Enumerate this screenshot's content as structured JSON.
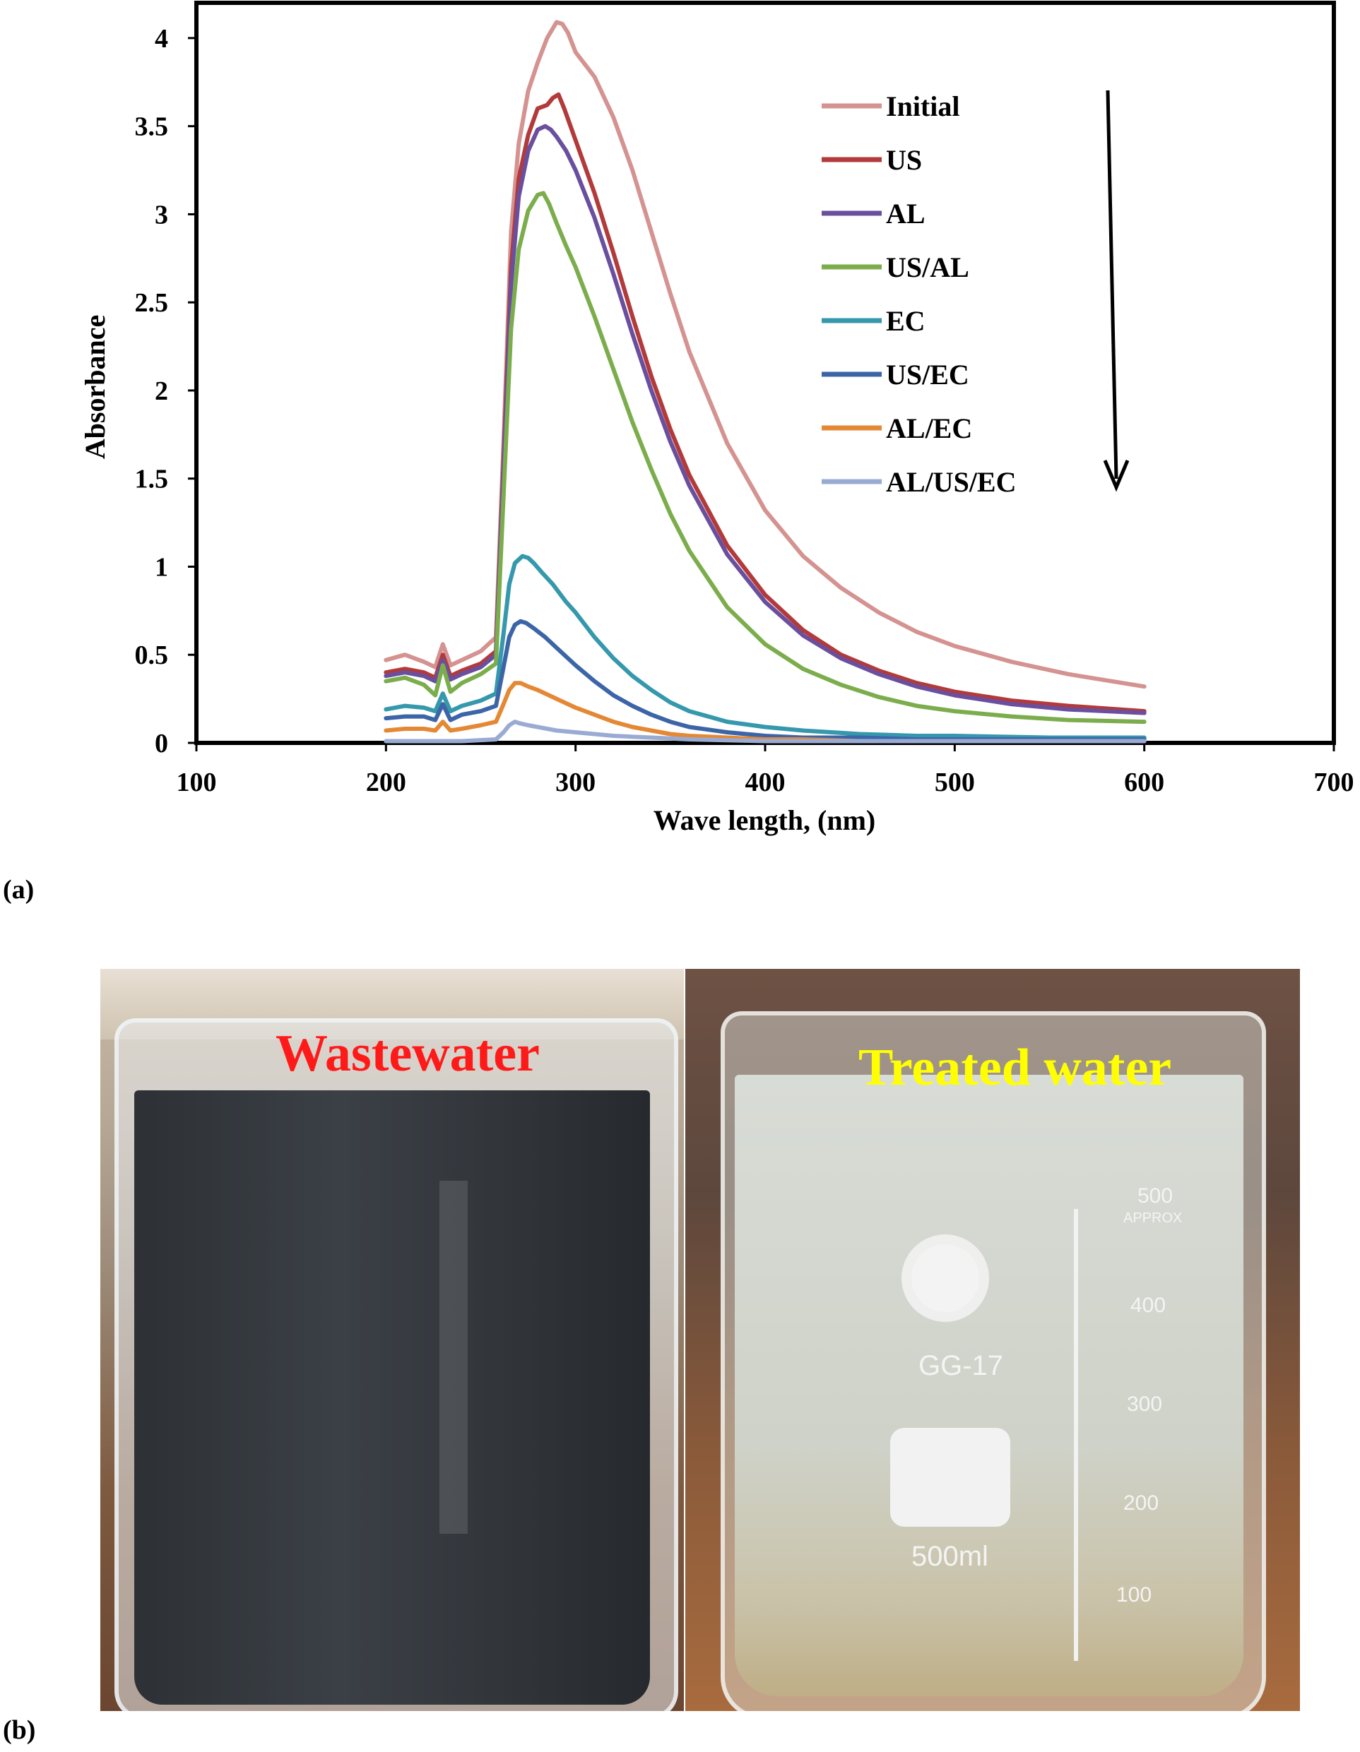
{
  "panel_labels": {
    "a": "(a)",
    "b": "(b)"
  },
  "chart_data": {
    "type": "line",
    "xlabel": "Wave length, (nm)",
    "ylabel": "Absorbance",
    "xlim": [
      100,
      700
    ],
    "ylim": [
      0,
      4.2
    ],
    "xticks": [
      100,
      200,
      300,
      400,
      500,
      600,
      700
    ],
    "yticks": [
      0,
      0.5,
      1,
      1.5,
      2,
      2.5,
      3,
      3.5,
      4
    ],
    "ytick_labels": [
      "0",
      "0.5",
      "1",
      "1.5",
      "2",
      "2.5",
      "3",
      "3.5",
      "4"
    ],
    "grid": false,
    "legend_position": "top-right",
    "annotation": "downward arrow indicating decreasing absorbance",
    "series": [
      {
        "name": "Initial",
        "color": "#d49390",
        "x": [
          200,
          210,
          220,
          226,
          230,
          234,
          240,
          250,
          258,
          262,
          266,
          270,
          275,
          280,
          285,
          290,
          293,
          296,
          300,
          305,
          310,
          320,
          330,
          340,
          350,
          360,
          380,
          400,
          420,
          440,
          460,
          480,
          500,
          530,
          560,
          600
        ],
        "y": [
          0.47,
          0.5,
          0.46,
          0.43,
          0.56,
          0.44,
          0.47,
          0.52,
          0.6,
          1.7,
          2.9,
          3.4,
          3.7,
          3.86,
          4.0,
          4.09,
          4.08,
          4.03,
          3.92,
          3.85,
          3.78,
          3.55,
          3.25,
          2.9,
          2.55,
          2.22,
          1.7,
          1.32,
          1.06,
          0.88,
          0.74,
          0.63,
          0.55,
          0.46,
          0.39,
          0.32
        ]
      },
      {
        "name": "US",
        "color": "#b33a3a",
        "x": [
          200,
          210,
          220,
          226,
          230,
          234,
          240,
          250,
          258,
          262,
          266,
          270,
          275,
          280,
          285,
          288,
          291,
          294,
          300,
          310,
          320,
          330,
          340,
          350,
          360,
          380,
          400,
          420,
          440,
          460,
          480,
          500,
          530,
          560,
          600
        ],
        "y": [
          0.4,
          0.42,
          0.4,
          0.37,
          0.5,
          0.38,
          0.41,
          0.45,
          0.52,
          1.6,
          2.7,
          3.2,
          3.45,
          3.6,
          3.62,
          3.66,
          3.68,
          3.6,
          3.42,
          3.12,
          2.78,
          2.42,
          2.08,
          1.78,
          1.52,
          1.12,
          0.84,
          0.64,
          0.5,
          0.41,
          0.34,
          0.29,
          0.24,
          0.21,
          0.18
        ]
      },
      {
        "name": "AL",
        "color": "#6a4f9e",
        "x": [
          200,
          210,
          220,
          226,
          230,
          234,
          240,
          250,
          258,
          262,
          266,
          270,
          275,
          280,
          284,
          287,
          290,
          295,
          300,
          310,
          320,
          330,
          340,
          350,
          360,
          380,
          400,
          420,
          440,
          460,
          480,
          500,
          530,
          560,
          600
        ],
        "y": [
          0.38,
          0.4,
          0.38,
          0.35,
          0.47,
          0.36,
          0.39,
          0.43,
          0.5,
          1.55,
          2.6,
          3.1,
          3.36,
          3.48,
          3.5,
          3.48,
          3.44,
          3.36,
          3.25,
          2.98,
          2.66,
          2.32,
          2.0,
          1.71,
          1.46,
          1.07,
          0.8,
          0.61,
          0.48,
          0.39,
          0.32,
          0.27,
          0.22,
          0.19,
          0.17
        ]
      },
      {
        "name": "US/AL",
        "color": "#7cad4c",
        "x": [
          200,
          210,
          220,
          226,
          230,
          234,
          240,
          250,
          258,
          262,
          266,
          270,
          275,
          280,
          283,
          286,
          290,
          295,
          300,
          310,
          320,
          330,
          340,
          350,
          360,
          380,
          400,
          420,
          440,
          460,
          480,
          500,
          530,
          560,
          600
        ],
        "y": [
          0.35,
          0.37,
          0.33,
          0.27,
          0.44,
          0.29,
          0.34,
          0.39,
          0.45,
          1.4,
          2.35,
          2.8,
          3.02,
          3.11,
          3.12,
          3.06,
          2.95,
          2.82,
          2.7,
          2.42,
          2.12,
          1.82,
          1.55,
          1.3,
          1.09,
          0.77,
          0.56,
          0.42,
          0.33,
          0.26,
          0.21,
          0.18,
          0.15,
          0.13,
          0.12
        ]
      },
      {
        "name": "EC",
        "color": "#3598ac",
        "x": [
          200,
          210,
          220,
          226,
          230,
          234,
          240,
          250,
          258,
          262,
          265,
          268,
          272,
          275,
          278,
          282,
          288,
          295,
          300,
          310,
          320,
          330,
          340,
          350,
          360,
          380,
          400,
          420,
          450,
          480,
          500,
          550,
          600
        ],
        "y": [
          0.19,
          0.21,
          0.2,
          0.18,
          0.28,
          0.18,
          0.21,
          0.24,
          0.28,
          0.62,
          0.9,
          1.02,
          1.06,
          1.05,
          1.02,
          0.97,
          0.9,
          0.8,
          0.74,
          0.6,
          0.48,
          0.38,
          0.3,
          0.23,
          0.18,
          0.12,
          0.09,
          0.07,
          0.05,
          0.04,
          0.04,
          0.03,
          0.03
        ]
      },
      {
        "name": "US/EC",
        "color": "#3c65a8",
        "x": [
          200,
          210,
          220,
          226,
          230,
          234,
          240,
          250,
          258,
          262,
          265,
          268,
          271,
          274,
          278,
          284,
          290,
          300,
          310,
          320,
          330,
          340,
          350,
          360,
          380,
          400,
          420,
          450,
          480,
          500,
          550,
          600
        ],
        "y": [
          0.14,
          0.15,
          0.15,
          0.13,
          0.22,
          0.13,
          0.16,
          0.18,
          0.21,
          0.43,
          0.6,
          0.67,
          0.69,
          0.68,
          0.65,
          0.6,
          0.54,
          0.44,
          0.35,
          0.27,
          0.21,
          0.16,
          0.12,
          0.09,
          0.06,
          0.04,
          0.03,
          0.03,
          0.02,
          0.02,
          0.02,
          0.02
        ]
      },
      {
        "name": "AL/EC",
        "color": "#e58834",
        "x": [
          200,
          210,
          220,
          226,
          230,
          234,
          240,
          250,
          258,
          262,
          265,
          268,
          271,
          275,
          280,
          290,
          300,
          310,
          320,
          330,
          340,
          350,
          360,
          380,
          400,
          420,
          450,
          480,
          500,
          550,
          600
        ],
        "y": [
          0.07,
          0.08,
          0.08,
          0.07,
          0.12,
          0.07,
          0.08,
          0.1,
          0.12,
          0.22,
          0.3,
          0.34,
          0.34,
          0.32,
          0.3,
          0.25,
          0.2,
          0.16,
          0.12,
          0.09,
          0.07,
          0.05,
          0.04,
          0.03,
          0.02,
          0.02,
          0.01,
          0.01,
          0.01,
          0.01,
          0.01
        ]
      },
      {
        "name": "AL/US/EC",
        "color": "#9aabd3",
        "x": [
          200,
          220,
          240,
          258,
          262,
          265,
          268,
          271,
          275,
          280,
          290,
          300,
          320,
          340,
          360,
          400,
          450,
          500,
          600
        ],
        "y": [
          0.01,
          0.01,
          0.01,
          0.02,
          0.06,
          0.1,
          0.12,
          0.11,
          0.1,
          0.09,
          0.07,
          0.06,
          0.04,
          0.03,
          0.02,
          0.01,
          0.01,
          0.01,
          0.01
        ]
      }
    ]
  },
  "photos": {
    "left_caption": "Wastewater",
    "left_caption_color": "#ff1a1a",
    "right_caption": "Treated water",
    "right_caption_color": "#ffff00",
    "beaker_markings": {
      "volume_labels": [
        "500",
        "400",
        "300",
        "200",
        "100"
      ],
      "approx": "APPROX",
      "model": "GG-17",
      "capacity": "500ml"
    }
  }
}
